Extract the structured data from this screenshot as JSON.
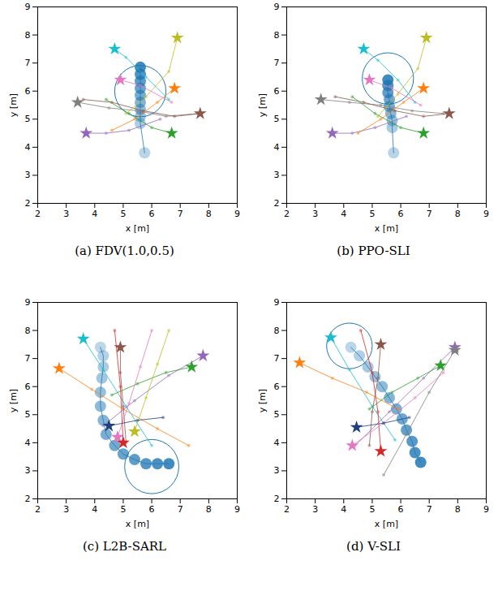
{
  "chart_data": [
    {
      "type": "scatter",
      "title": "(a) FDV(1.0,0.5)",
      "xlabel": "x [m]",
      "ylabel": "y [m]",
      "xlim": [
        2,
        9
      ],
      "ylim": [
        2,
        9
      ],
      "xticks": [
        2,
        3,
        4,
        5,
        6,
        7,
        8,
        9
      ],
      "yticks": [
        2,
        3,
        4,
        5,
        6,
        7,
        8,
        9
      ],
      "grid": false,
      "series": [
        {
          "color": "#1f77b4",
          "marker": "circle",
          "line_style": "solid",
          "x": [
            5.75,
            5.6,
            5.6,
            5.6,
            5.6,
            5.6,
            5.6,
            5.6,
            5.6,
            5.6
          ],
          "y": [
            3.8,
            4.85,
            5.1,
            5.35,
            5.6,
            5.85,
            6.1,
            6.35,
            6.6,
            6.85
          ],
          "circle": {
            "x": 5.6,
            "y": 6.0,
            "radius": 0.9
          }
        },
        {
          "color": "#7f7f7f",
          "marker": "star",
          "line_style": "solid",
          "x": [
            7.6,
            6.5,
            5.5,
            4.5,
            3.4
          ],
          "y": [
            5.2,
            5.1,
            5.3,
            5.4,
            5.6
          ]
        },
        {
          "color": "#8c564b",
          "marker": "star",
          "line_style": "solid",
          "x": [
            3.6,
            4.6,
            5.7,
            6.8,
            7.7
          ],
          "y": [
            5.7,
            5.6,
            5.3,
            5.1,
            5.2
          ]
        },
        {
          "color": "#9467bd",
          "marker": "star",
          "line_style": "solid",
          "x": [
            6.3,
            5.2,
            4.4,
            3.7
          ],
          "y": [
            5.0,
            4.6,
            4.5,
            4.5
          ]
        },
        {
          "color": "#2ca02c",
          "marker": "star",
          "line_style": "solid",
          "x": [
            4.4,
            5.2,
            6.0,
            6.7
          ],
          "y": [
            5.7,
            5.2,
            4.7,
            4.5
          ]
        },
        {
          "color": "#ff7f0e",
          "marker": "star",
          "line_style": "solid",
          "x": [
            4.6,
            5.4,
            6.2,
            6.8
          ],
          "y": [
            4.6,
            5.0,
            5.6,
            6.1
          ]
        },
        {
          "color": "#bcbd22",
          "marker": "star",
          "line_style": "solid",
          "x": [
            5.1,
            5.8,
            6.6,
            6.9
          ],
          "y": [
            5.2,
            5.8,
            6.7,
            7.9
          ]
        },
        {
          "color": "#17becf",
          "marker": "star",
          "line_style": "solid",
          "x": [
            6.6,
            5.8,
            5.1,
            4.7
          ],
          "y": [
            5.7,
            6.5,
            7.2,
            7.5
          ]
        },
        {
          "color": "#e377c2",
          "marker": "star",
          "line_style": "solid",
          "x": [
            6.7,
            5.6,
            4.9
          ],
          "y": [
            5.6,
            6.2,
            6.4
          ]
        }
      ]
    },
    {
      "type": "scatter",
      "title": "(b) PPO-SLI",
      "xlabel": "x [m]",
      "ylabel": "y [m]",
      "xlim": [
        2,
        9
      ],
      "ylim": [
        2,
        9
      ],
      "xticks": [
        2,
        3,
        4,
        5,
        6,
        7,
        8,
        9
      ],
      "yticks": [
        2,
        3,
        4,
        5,
        6,
        7,
        8,
        9
      ],
      "grid": false,
      "series": [
        {
          "color": "#1f77b4",
          "marker": "circle",
          "line_style": "solid",
          "x": [
            5.75,
            5.7,
            5.7,
            5.65,
            5.6,
            5.6,
            5.55,
            5.55,
            5.55
          ],
          "y": [
            3.8,
            4.7,
            4.95,
            5.2,
            5.45,
            5.7,
            5.95,
            6.2,
            6.4
          ],
          "circle": {
            "x": 5.55,
            "y": 6.45,
            "radius": 0.9
          }
        },
        {
          "color": "#7f7f7f",
          "marker": "star",
          "line_style": "solid",
          "x": [
            7.5,
            6.4,
            5.3,
            4.2,
            3.2
          ],
          "y": [
            5.2,
            5.3,
            5.5,
            5.6,
            5.7
          ]
        },
        {
          "color": "#8c564b",
          "marker": "star",
          "line_style": "solid",
          "x": [
            3.7,
            4.7,
            5.8,
            6.8,
            7.7
          ],
          "y": [
            5.8,
            5.6,
            5.3,
            5.1,
            5.2
          ]
        },
        {
          "color": "#9467bd",
          "marker": "star",
          "line_style": "solid",
          "x": [
            6.2,
            5.1,
            4.3,
            3.6
          ],
          "y": [
            5.1,
            4.7,
            4.5,
            4.5
          ]
        },
        {
          "color": "#2ca02c",
          "marker": "star",
          "line_style": "solid",
          "x": [
            4.3,
            5.1,
            6.0,
            6.8
          ],
          "y": [
            5.8,
            5.2,
            4.7,
            4.5
          ]
        },
        {
          "color": "#ff7f0e",
          "marker": "star",
          "line_style": "solid",
          "x": [
            4.5,
            5.3,
            6.1,
            6.8
          ],
          "y": [
            4.5,
            5.0,
            5.6,
            6.1
          ]
        },
        {
          "color": "#bcbd22",
          "marker": "star",
          "line_style": "solid",
          "x": [
            5.2,
            5.9,
            6.6,
            6.9
          ],
          "y": [
            5.1,
            5.9,
            6.8,
            7.9
          ]
        },
        {
          "color": "#17becf",
          "marker": "star",
          "line_style": "solid",
          "x": [
            6.5,
            5.9,
            5.2,
            4.7
          ],
          "y": [
            5.6,
            6.4,
            7.1,
            7.5
          ]
        },
        {
          "color": "#e377c2",
          "marker": "star",
          "line_style": "solid",
          "x": [
            6.7,
            5.7,
            4.9
          ],
          "y": [
            5.5,
            6.1,
            6.4
          ]
        }
      ]
    },
    {
      "type": "scatter",
      "title": "(c) L2B-SARL",
      "xlabel": "x [m]",
      "ylabel": "y [m]",
      "xlim": [
        2,
        9
      ],
      "ylim": [
        2,
        9
      ],
      "xticks": [
        2,
        3,
        4,
        5,
        6,
        7,
        8,
        9
      ],
      "yticks": [
        2,
        3,
        4,
        5,
        6,
        7,
        8,
        9
      ],
      "grid": false,
      "series": [
        {
          "color": "#1f77b4",
          "marker": "circle",
          "line_style": "solid",
          "x": [
            4.2,
            4.3,
            4.3,
            4.25,
            4.2,
            4.2,
            4.3,
            4.4,
            4.7,
            5.0,
            5.4,
            5.8,
            6.2,
            6.6
          ],
          "y": [
            7.4,
            7.1,
            6.7,
            6.3,
            5.8,
            5.3,
            4.8,
            4.3,
            3.9,
            3.6,
            3.4,
            3.25,
            3.25,
            3.25
          ],
          "circle": {
            "x": 6.0,
            "y": 3.15,
            "radius": 0.95
          }
        },
        {
          "color": "#ff7f0e",
          "marker": "star",
          "line_style": "solid",
          "x": [
            7.3,
            6.2,
            5.0,
            3.9,
            2.75
          ],
          "y": [
            3.9,
            4.5,
            5.2,
            5.9,
            6.65
          ]
        },
        {
          "color": "#17becf",
          "marker": "star",
          "line_style": "solid",
          "x": [
            6.0,
            5.1,
            4.3,
            3.6
          ],
          "y": [
            3.9,
            5.3,
            6.6,
            7.7
          ]
        },
        {
          "color": "#8c564b",
          "marker": "star",
          "line_style": "solid",
          "x": [
            5.1,
            5.0,
            4.9,
            4.9
          ],
          "y": [
            4.0,
            5.3,
            6.5,
            7.4
          ]
        },
        {
          "color": "#9467bd",
          "marker": "star",
          "line_style": "solid",
          "x": [
            4.3,
            5.4,
            6.6,
            7.8
          ],
          "y": [
            4.6,
            5.5,
            6.4,
            7.1
          ]
        },
        {
          "color": "#2ca02c",
          "marker": "star",
          "line_style": "solid",
          "x": [
            4.6,
            5.5,
            6.5,
            7.4
          ],
          "y": [
            5.7,
            6.1,
            6.5,
            6.7
          ]
        },
        {
          "color": "#e377c2",
          "marker": "star",
          "line_style": "solid",
          "x": [
            6.0,
            5.6,
            5.2,
            4.8
          ],
          "y": [
            8.0,
            6.7,
            5.4,
            4.2
          ]
        },
        {
          "color": "#bcbd22",
          "marker": "star",
          "line_style": "solid",
          "x": [
            6.6,
            6.2,
            5.8,
            5.4
          ],
          "y": [
            8.0,
            6.8,
            5.6,
            4.4
          ]
        },
        {
          "color": "#d62728",
          "marker": "star",
          "line_style": "solid",
          "x": [
            4.7,
            4.9,
            5.0
          ],
          "y": [
            8.0,
            6.0,
            4.0
          ]
        },
        {
          "color": "#1f3f7f",
          "marker": "star",
          "line_style": "solid",
          "x": [
            6.4,
            5.5,
            4.5
          ],
          "y": [
            4.9,
            4.8,
            4.6
          ]
        }
      ]
    },
    {
      "type": "scatter",
      "title": "(d) V-SLI",
      "xlabel": "x [m]",
      "ylabel": "y [m]",
      "xlim": [
        2,
        9
      ],
      "ylim": [
        2,
        9
      ],
      "xticks": [
        2,
        3,
        4,
        5,
        6,
        7,
        8,
        9
      ],
      "yticks": [
        2,
        3,
        4,
        5,
        6,
        7,
        8,
        9
      ],
      "grid": false,
      "series": [
        {
          "color": "#1f77b4",
          "marker": "circle",
          "line_style": "solid",
          "x": [
            4.25,
            4.55,
            4.85,
            5.1,
            5.35,
            5.6,
            5.85,
            6.05,
            6.2,
            6.4,
            6.5,
            6.7
          ],
          "y": [
            7.4,
            7.1,
            6.7,
            6.35,
            6.0,
            5.6,
            5.2,
            4.85,
            4.45,
            4.05,
            3.65,
            3.3
          ],
          "circle": {
            "x": 4.2,
            "y": 7.45,
            "radius": 0.8
          }
        },
        {
          "color": "#ff7f0e",
          "marker": "star",
          "line_style": "solid",
          "x": [
            5.9,
            4.8,
            3.6,
            2.45
          ],
          "y": [
            5.2,
            5.8,
            6.3,
            6.85
          ]
        },
        {
          "color": "#17becf",
          "marker": "star",
          "line_style": "solid",
          "x": [
            5.8,
            5.0,
            4.2,
            3.55
          ],
          "y": [
            4.1,
            5.3,
            6.6,
            7.75
          ]
        },
        {
          "color": "#8c564b",
          "marker": "star",
          "line_style": "solid",
          "x": [
            4.9,
            5.0,
            5.2,
            5.3
          ],
          "y": [
            3.9,
            5.1,
            6.3,
            7.5
          ]
        },
        {
          "color": "#9467bd",
          "marker": "star",
          "line_style": "solid",
          "x": [
            4.4,
            5.6,
            6.8,
            7.9
          ],
          "y": [
            3.9,
            5.1,
            6.3,
            7.4
          ]
        },
        {
          "color": "#2ca02c",
          "marker": "star",
          "line_style": "solid",
          "x": [
            4.9,
            5.7,
            6.6,
            7.4
          ],
          "y": [
            5.2,
            5.8,
            6.3,
            6.75
          ]
        },
        {
          "color": "#d62728",
          "marker": "star",
          "line_style": "solid",
          "x": [
            4.6,
            5.0,
            5.2,
            5.3
          ],
          "y": [
            8.0,
            6.5,
            5.1,
            3.7
          ]
        },
        {
          "color": "#e377c2",
          "marker": "star",
          "line_style": "solid",
          "x": [
            7.5,
            6.5,
            5.4,
            4.3
          ],
          "y": [
            6.5,
            5.6,
            4.7,
            3.9
          ]
        },
        {
          "color": "#7f7f7f",
          "marker": "star",
          "line_style": "solid",
          "x": [
            5.4,
            6.2,
            7.0,
            7.9
          ],
          "y": [
            2.85,
            4.3,
            5.8,
            7.3
          ]
        },
        {
          "color": "#1f3f7f",
          "marker": "star",
          "line_style": "solid",
          "x": [
            6.3,
            5.4,
            4.45
          ],
          "y": [
            4.9,
            4.7,
            4.55
          ]
        }
      ]
    }
  ]
}
